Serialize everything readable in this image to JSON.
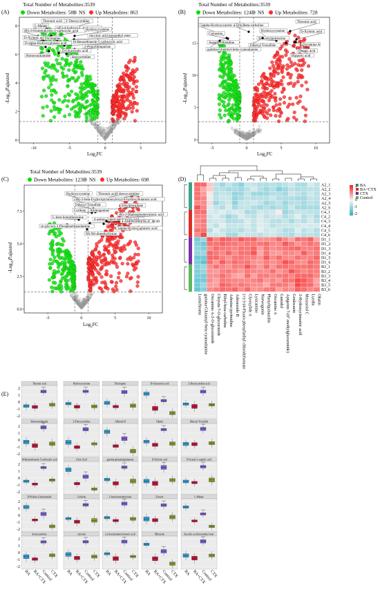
{
  "panels": {
    "A": {
      "label": "(A)",
      "title": "Total Number of Metabolites:3539",
      "legend": [
        {
          "name": "Down Metabolites: 587",
          "color": "#00dd00"
        },
        {
          "name": "NS",
          "color": "#9e9e9e"
        },
        {
          "name": "Up Metabolites: 863",
          "color": "#ff2a2a"
        }
      ],
      "xlabel": "Log2FC",
      "ylabel": "-Log10P.ajusted",
      "xticks": [
        "-10",
        "-5",
        "0",
        "5"
      ],
      "yticks": [
        "0",
        "2",
        "4",
        "6",
        "8"
      ],
      "annotations": [
        "Threonic acid",
        "2'-Deoxycytidine",
        "L-Malate",
        "(4E)-4-hydroxy-L-isoleucine",
        "(R)-3-Oxotetrahydro-2-carboxylic acid",
        "Hydroxycysteine",
        "Succinic acid monoethyl ester",
        "D-Xylonic acid",
        "Dicitrapine",
        "10-Benzothiazole-5-carboxylic acid",
        "D-alpha-Hydroxyglutaric acid",
        "2-Propylthiopurine",
        "D-Glucuronic acid",
        "Homovanilamide",
        "deoxyeritdine"
      ]
    },
    "B": {
      "label": "(B)",
      "title": "Total Number of Metabolites:3539",
      "legend": [
        {
          "name": "Down Metabolites: 1243",
          "color": "#00dd00"
        },
        {
          "name": "NS",
          "color": "#9e9e9e"
        },
        {
          "name": "Up Metabolites: 728",
          "color": "#ff2a2a"
        }
      ],
      "xlabel": "Log2FC",
      "ylabel": "-Log10P.ajusted",
      "xticks": [
        "-5",
        "0",
        "5",
        "10"
      ],
      "yticks": [
        "0",
        "5",
        "10",
        "15"
      ],
      "annotations": [
        "Threonic acid",
        "5alpha-Hydroxycarotic acid",
        "Ethylbeta-carboline",
        "Hydroxycysteine",
        "D-Xylonic acid",
        "Carnosine",
        "N-Acetylputrescine",
        "Oxcamine A",
        "Aspartyl-Histidine",
        "Dihexyl Trisulfide",
        "Oxonic acid",
        "gamma-Glutamyl-beta-cyanoalanine",
        "Hippuric acid"
      ]
    },
    "C": {
      "label": "(C)",
      "title": "Total Number of Metabolites:3539",
      "legend": [
        {
          "name": "Down Metabolites: 1239",
          "color": "#00dd00"
        },
        {
          "name": "NS",
          "color": "#9e9e9e"
        },
        {
          "name": "Up Metabolites: 698",
          "color": "#ff2a2a"
        }
      ],
      "xlabel": "Log2FC",
      "ylabel": "-Log10P.ajusted",
      "xticks": [
        "-5",
        "0",
        "5",
        "10"
      ],
      "yticks": [
        "0.0",
        "2.5",
        "5.0",
        "7.5"
      ],
      "annotations": [
        "Hydroxycysteine",
        "Threonic acid",
        "deoxycarnitine",
        "(3R)-3-beta-D-glucopyranosyloxy)-6-hydroxybutanoic acid",
        "Dihexyl Trisulfide",
        "Ethylphosphate",
        "Corilene",
        "Aminogenine",
        "(R)-3-Diphosphomevalonic acid",
        "L-beta-homothreonine",
        "4-amino-3-mercaptobutyric acid",
        "4-AMINOPHENLIC ACID",
        "sn-glycero-3-Phosphoethanolamine",
        "3alpha-Hydroxyglutaric acid",
        "N6-N6-dimethyllysine"
      ]
    },
    "D": {
      "label": "(D)",
      "legend": [
        {
          "name": "BA",
          "color": "#3aa38a"
        },
        {
          "name": "BA+CTX",
          "color": "#de2d26"
        },
        {
          "name": "CTX",
          "color": "#7b2fa8"
        },
        {
          "name": "Control",
          "color": "#5cb85c"
        }
      ],
      "scale": [
        "2",
        "1",
        "0",
        "-1",
        "-2"
      ],
      "rows": [
        "A2_1",
        "A2_2",
        "A2_3",
        "A2_4",
        "A2_5",
        "A2_6",
        "C4_1",
        "C4_2",
        "C4_3",
        "C4_4",
        "C4_5",
        "C4_6",
        "D1_1",
        "D1_2",
        "D1_3",
        "D1_4",
        "D1_5",
        "D1_6",
        "B3_1",
        "B3_2",
        "B3_3",
        "B3_4",
        "B3_5",
        "B3_6"
      ],
      "columns": [
        "Lumichrome",
        "gamma-Glutamyl-beta-cyanoalanine",
        "Oxcamine A-2-O-glucuronide",
        "Chrysin-7-O-glucuronide",
        "Ethyl-beta-carboline",
        "Adenine/pyrimidine",
        "Adrenoside B",
        "(+)-3-(4-Fluoro phenyl)ethyl chlorideformate",
        "Glyoxylide A",
        "Lysicamine",
        "Norwogonin",
        "Phenylquinazolin",
        "Oxcamine A",
        "Ganodol",
        "Apigenin 7-(6''-methylglucuronide)",
        "Genkwanin",
        "2-Hydroxycinnamic acid",
        "Mezaseiol C",
        "Luedin",
        "Okatin"
      ]
    },
    "E": {
      "label": "(E)",
      "yticks": [
        "2",
        "1",
        "0",
        "-1",
        "-2"
      ],
      "groups": [
        "BA",
        "BA+CTX",
        "Control",
        "CTX"
      ],
      "group_colors": [
        "#2a9fd6",
        "#c0143c",
        "#7a5cd6",
        "#8a9a2a"
      ],
      "metabolites": [
        "Threonic acid",
        "Hydroxycysteine",
        "Dicitrapine",
        "D-Glucuronic acid",
        "2-Deoxycytidine acid",
        "Homovanilamide",
        "2'-Deoxycytidine",
        "Albestol B",
        "Okatin",
        "Dihexyl Trisulfide",
        "10-Benzothiazole-5-carboxylic acid",
        "Citric Acid",
        "gamma-glutamylglutamate",
        "D-Xylonic acid",
        "N-Acetyl-L-aspartic acid",
        "D-Proline-Carboxamide",
        "Corilene",
        "L-beta-homothreonine",
        "Ectoine",
        "L-Malate",
        "deoxycarnitine",
        "cytosine",
        "2-(Acetylamino)-benzoic acid",
        "Mirtazine",
        "Succinic acid monoethyl ester"
      ]
    }
  }
}
